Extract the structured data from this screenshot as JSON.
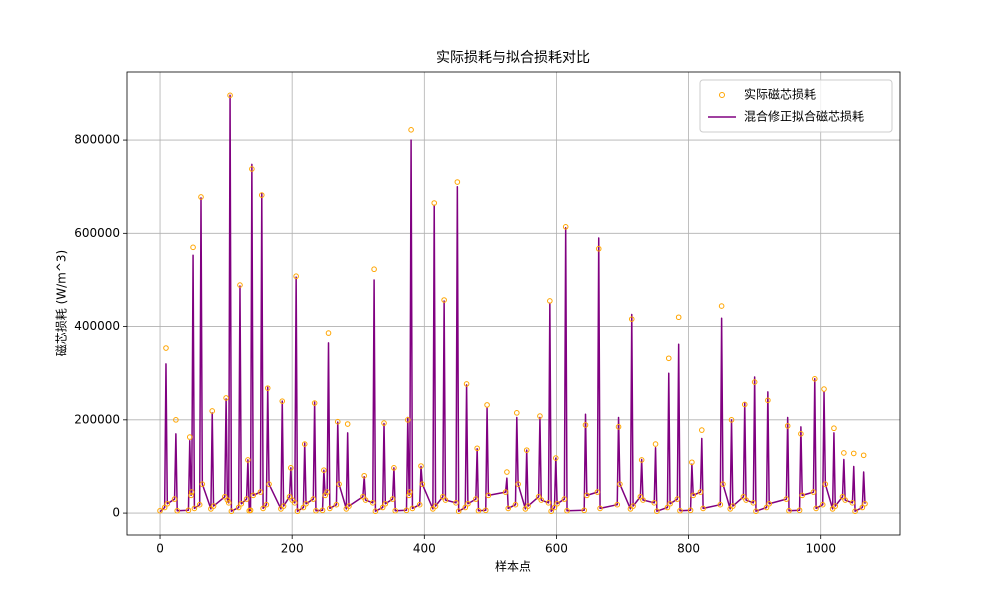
{
  "chart_data": {
    "type": "line",
    "title": "实际损耗与拟合损耗对比",
    "xlabel": "样本点",
    "ylabel": "磁芯损耗 (W/m^3)",
    "x": [
      0,
      7,
      9,
      11,
      22,
      24,
      26,
      43,
      45,
      47,
      48,
      50,
      52,
      60,
      62,
      64,
      77,
      79,
      81,
      98,
      100,
      102,
      104,
      106,
      108,
      119,
      121,
      123,
      131,
      133,
      135,
      137,
      139,
      141,
      152,
      154,
      156,
      161,
      163,
      165,
      183,
      185,
      187,
      196,
      198,
      200,
      204,
      206,
      208,
      217,
      219,
      221,
      232,
      234,
      236,
      246,
      248,
      250,
      253,
      255,
      257,
      267,
      269,
      271,
      282,
      284,
      286,
      307,
      309,
      311,
      322,
      324,
      326,
      337,
      339,
      341,
      352,
      354,
      356,
      373,
      375,
      377,
      378,
      380,
      382,
      393,
      395,
      397,
      413,
      415,
      417,
      428,
      430,
      432,
      448,
      450,
      452,
      462,
      464,
      466,
      478,
      480,
      482,
      493,
      495,
      497,
      523,
      525,
      527,
      538,
      540,
      542,
      553,
      555,
      557,
      573,
      575,
      577,
      588,
      590,
      592,
      597,
      599,
      601,
      612,
      614,
      616,
      642,
      644,
      646,
      662,
      664,
      666,
      692,
      694,
      696,
      712,
      714,
      716,
      727,
      729,
      731,
      748,
      750,
      752,
      768,
      770,
      772,
      783,
      785,
      787,
      803,
      805,
      807,
      818,
      820,
      822,
      848,
      850,
      852,
      863,
      865,
      867,
      883,
      885,
      887,
      898,
      900,
      902,
      918,
      920,
      922,
      948,
      950,
      952,
      968,
      970,
      972,
      989,
      991,
      993,
      1003,
      1005,
      1007,
      1018,
      1020,
      1022,
      1033,
      1035,
      1037,
      1048,
      1050,
      1052,
      1063,
      1065,
      1067
    ],
    "series": [
      {
        "name": "实际磁芯损耗",
        "color": "#ffa500",
        "marker": "circle",
        "values": [
          5000,
          12000,
          354000,
          20000,
          30000,
          200000,
          5000,
          6000,
          163000,
          38000,
          45000,
          570000,
          10000,
          18000,
          678000,
          62000,
          9000,
          219000,
          15000,
          35000,
          247000,
          28000,
          22000,
          896000,
          4000,
          12000,
          489000,
          20000,
          30000,
          114000,
          5000,
          6000,
          738000,
          38000,
          45000,
          682000,
          10000,
          18000,
          268000,
          62000,
          9000,
          240000,
          15000,
          35000,
          97000,
          28000,
          22000,
          508000,
          4000,
          12000,
          148000,
          20000,
          30000,
          236000,
          5000,
          6000,
          92000,
          38000,
          45000,
          386000,
          10000,
          18000,
          196000,
          62000,
          9000,
          191000,
          15000,
          35000,
          80000,
          28000,
          22000,
          523000,
          4000,
          12000,
          193000,
          20000,
          30000,
          97000,
          5000,
          6000,
          200000,
          38000,
          45000,
          822000,
          10000,
          18000,
          101000,
          62000,
          9000,
          665000,
          15000,
          35000,
          457000,
          28000,
          22000,
          710000,
          4000,
          12000,
          277000,
          20000,
          30000,
          139000,
          5000,
          6000,
          232000,
          38000,
          45000,
          88000,
          10000,
          18000,
          215000,
          62000,
          9000,
          135000,
          15000,
          35000,
          208000,
          28000,
          22000,
          455000,
          4000,
          12000,
          118000,
          20000,
          30000,
          614000,
          5000,
          6000,
          189000,
          38000,
          45000,
          567000,
          10000,
          18000,
          185000,
          62000,
          9000,
          416000,
          15000,
          35000,
          114000,
          28000,
          22000,
          148000,
          4000,
          12000,
          332000,
          20000,
          30000,
          420000,
          5000,
          6000,
          109000,
          38000,
          45000,
          178000,
          10000,
          18000,
          444000,
          62000,
          9000,
          200000,
          15000,
          35000,
          233000,
          28000,
          22000,
          281000,
          4000,
          12000,
          242000,
          20000,
          30000,
          187000,
          5000,
          6000,
          170000,
          38000,
          45000,
          288000,
          10000,
          18000,
          266000,
          62000,
          9000,
          182000,
          15000,
          35000,
          129000,
          28000,
          22000,
          128000,
          4000,
          12000,
          124000,
          20000
        ]
      },
      {
        "name": "混合修正拟合磁芯损耗",
        "color": "#800080",
        "marker": "line",
        "values": [
          3000,
          12000,
          320000,
          20000,
          30000,
          170000,
          5000,
          6000,
          155000,
          38000,
          45000,
          553000,
          10000,
          18000,
          676000,
          62000,
          9000,
          215000,
          15000,
          35000,
          245000,
          28000,
          22000,
          896000,
          4000,
          12000,
          487000,
          20000,
          30000,
          114000,
          5000,
          6000,
          748000,
          38000,
          45000,
          686000,
          10000,
          18000,
          270000,
          62000,
          9000,
          240000,
          15000,
          35000,
          97000,
          28000,
          22000,
          506000,
          4000,
          12000,
          150000,
          20000,
          30000,
          238000,
          5000,
          6000,
          92000,
          38000,
          45000,
          365000,
          10000,
          18000,
          195000,
          62000,
          9000,
          172000,
          15000,
          35000,
          78000,
          28000,
          22000,
          500000,
          4000,
          12000,
          192000,
          20000,
          30000,
          97000,
          5000,
          6000,
          205000,
          38000,
          45000,
          800000,
          10000,
          18000,
          100000,
          62000,
          9000,
          660000,
          15000,
          35000,
          455000,
          28000,
          22000,
          700000,
          4000,
          12000,
          275000,
          20000,
          30000,
          138000,
          5000,
          6000,
          225000,
          38000,
          45000,
          75000,
          10000,
          18000,
          205000,
          62000,
          9000,
          135000,
          15000,
          35000,
          205000,
          28000,
          22000,
          450000,
          4000,
          12000,
          118000,
          20000,
          30000,
          612000,
          5000,
          6000,
          212000,
          38000,
          45000,
          590000,
          10000,
          18000,
          205000,
          62000,
          9000,
          426000,
          15000,
          35000,
          115000,
          28000,
          22000,
          140000,
          4000,
          12000,
          300000,
          20000,
          30000,
          362000,
          5000,
          6000,
          105000,
          38000,
          45000,
          160000,
          10000,
          18000,
          418000,
          62000,
          9000,
          200000,
          15000,
          35000,
          236000,
          28000,
          22000,
          292000,
          4000,
          12000,
          260000,
          20000,
          30000,
          205000,
          5000,
          6000,
          185000,
          38000,
          45000,
          288000,
          10000,
          18000,
          260000,
          62000,
          9000,
          172000,
          15000,
          35000,
          115000,
          28000,
          22000,
          100000,
          4000,
          12000,
          88000,
          20000
        ]
      }
    ],
    "xlim": [
      -50,
      1120
    ],
    "ylim": [
      -47000,
      946000
    ],
    "xticks": [
      0,
      200,
      400,
      600,
      800,
      1000
    ],
    "yticks": [
      0,
      200000,
      400000,
      600000,
      800000
    ],
    "grid": true,
    "legend": "upper right"
  }
}
